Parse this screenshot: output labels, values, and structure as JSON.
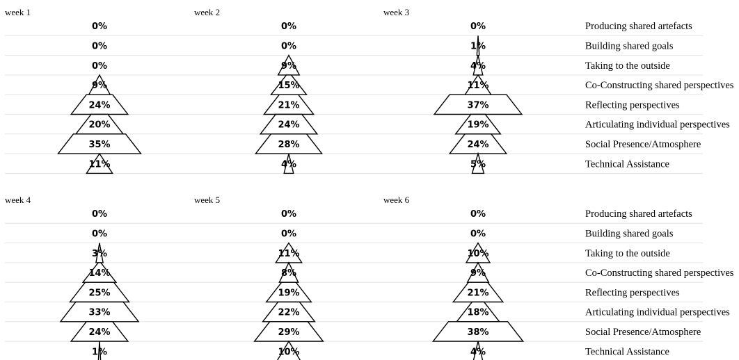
{
  "chart_data": {
    "type": "bar",
    "style": "stacked-trapezoid pyramid (centered widths proportional to value)",
    "unit": "%",
    "categories": [
      "Producing shared artefacts",
      "Building shared goals",
      "Taking to the outside",
      "Co-Constructing shared perspectives",
      "Reflecting perspectives",
      "Articulating individual perspectives",
      "Social Presence/Atmosphere",
      "Technical Assistance"
    ],
    "panels": [
      {
        "title": "week 1",
        "values": [
          0,
          0,
          0,
          9,
          24,
          20,
          35,
          11
        ]
      },
      {
        "title": "week 2",
        "values": [
          0,
          0,
          9,
          15,
          21,
          24,
          28,
          4
        ]
      },
      {
        "title": "week 3",
        "values": [
          0,
          1,
          4,
          11,
          37,
          19,
          24,
          5
        ]
      },
      {
        "title": "week 4",
        "values": [
          0,
          0,
          3,
          14,
          25,
          33,
          24,
          1
        ]
      },
      {
        "title": "week 5",
        "values": [
          0,
          0,
          11,
          8,
          19,
          22,
          29,
          10
        ]
      },
      {
        "title": "week 6",
        "values": [
          0,
          0,
          10,
          9,
          21,
          18,
          38,
          4
        ]
      }
    ],
    "grid": true,
    "legend": "category labels at right of each row of panels"
  }
}
